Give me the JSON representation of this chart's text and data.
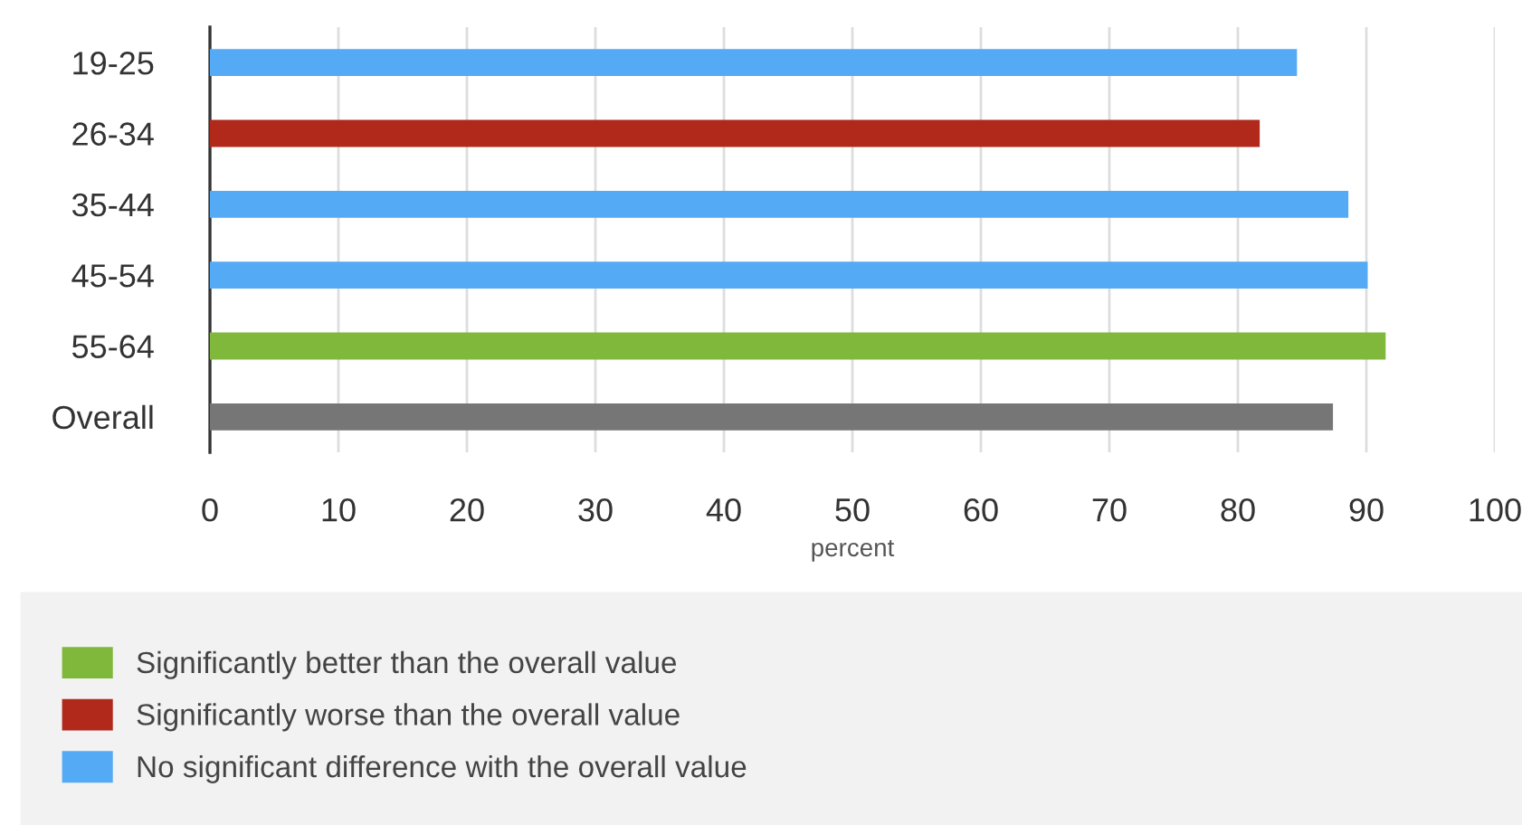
{
  "chart_data": {
    "type": "bar",
    "orientation": "horizontal",
    "xlabel": "percent",
    "categories": [
      "19-25",
      "26-34",
      "35-44",
      "45-54",
      "55-64",
      "Overall"
    ],
    "series": [
      {
        "name": "Significantly better than the overall value",
        "color": "#7fb83a",
        "values": [
          null,
          null,
          null,
          null,
          91.5,
          null
        ]
      },
      {
        "name": "Significantly worse than the overall value",
        "color": "#b0291b",
        "values": [
          null,
          81.7,
          null,
          null,
          null,
          null
        ]
      },
      {
        "name": "No significant difference with the overall value",
        "color": "#55aaf5",
        "values": [
          84.6,
          null,
          88.6,
          90.1,
          null,
          null
        ]
      },
      {
        "color": "#767676",
        "values": [
          null,
          null,
          null,
          null,
          null,
          87.4
        ]
      }
    ],
    "xlim": [
      0,
      100
    ],
    "xticks": [
      0,
      10,
      20,
      30,
      40,
      50,
      60,
      70,
      80,
      90,
      100
    ],
    "grid": "x",
    "legend": "bottom"
  }
}
